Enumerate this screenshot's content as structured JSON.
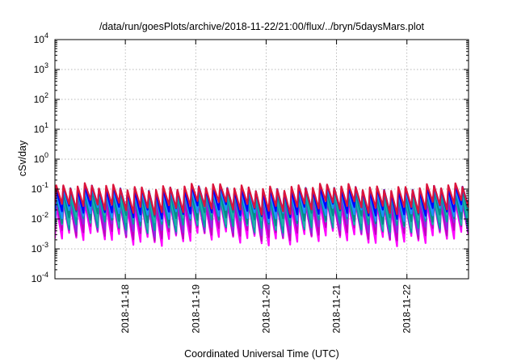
{
  "chart_data": {
    "type": "line",
    "title": "/data/run/goesPlots/archive/2018-11-22/21:00/flux/../bryn/5daysMars.plot",
    "xlabel": "Coordinated Universal Time (UTC)",
    "ylabel": "cSv/day",
    "yscale": "log",
    "ylim": [
      0.0001,
      10000
    ],
    "y_ticks": [
      {
        "value": 0.0001,
        "base": "10",
        "exp": "-4"
      },
      {
        "value": 0.001,
        "base": "10",
        "exp": "-3"
      },
      {
        "value": 0.01,
        "base": "10",
        "exp": "-2"
      },
      {
        "value": 0.1,
        "base": "10",
        "exp": "-1"
      },
      {
        "value": 1,
        "base": "10",
        "exp": "0"
      },
      {
        "value": 10,
        "base": "10",
        "exp": "1"
      },
      {
        "value": 100,
        "base": "10",
        "exp": "2"
      },
      {
        "value": 1000,
        "base": "10",
        "exp": "3"
      },
      {
        "value": 10000,
        "base": "10",
        "exp": "4"
      }
    ],
    "xlim": [
      "2018-11-17 00:00",
      "2018-11-22 21:00"
    ],
    "x_ticks": [
      "2018-11-18",
      "2018-11-19",
      "2018-11-20",
      "2018-11-21",
      "2018-11-22"
    ],
    "grid": true,
    "legend": "none",
    "pattern": "sawtooth",
    "period_hours": 2.43,
    "series": [
      {
        "color": "#ff00ff",
        "peak": 0.028,
        "trough": 0.0022
      },
      {
        "color": "#c000c0",
        "peak": 0.034,
        "trough": 0.0032
      },
      {
        "color": "#8a2be2",
        "peak": 0.045,
        "trough": 0.0045
      },
      {
        "color": "#00a0a0",
        "peak": 0.055,
        "trough": 0.006
      },
      {
        "color": "#20b2aa",
        "peak": 0.065,
        "trough": 0.008
      },
      {
        "color": "#008b8b",
        "peak": 0.075,
        "trough": 0.0105
      },
      {
        "color": "#1e90ff",
        "peak": 0.088,
        "trough": 0.014
      },
      {
        "color": "#0000ff",
        "peak": 0.1,
        "trough": 0.018
      },
      {
        "color": "#dc143c",
        "peak": 0.115,
        "trough": 0.024
      }
    ]
  }
}
